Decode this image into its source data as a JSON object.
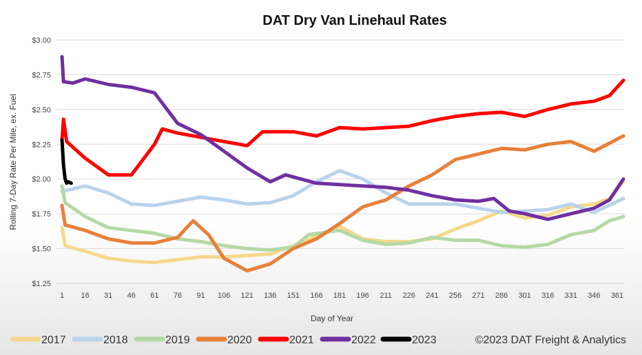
{
  "chart_data": {
    "type": "line",
    "title": "DAT Dry Van Linehaul Rates",
    "xlabel": "Day of Year",
    "ylabel": "Rolling 7-Day Rate Per Mile, ex. Fuel",
    "ylim": [
      1.25,
      3.0
    ],
    "xlim": [
      1,
      365
    ],
    "y_ticks": [
      "$1.25",
      "$1.50",
      "$1.75",
      "$2.00",
      "$2.25",
      "$2.50",
      "$2.75",
      "$3.00"
    ],
    "x_ticks": [
      "1",
      "16",
      "31",
      "46",
      "61",
      "76",
      "91",
      "106",
      "121",
      "136",
      "151",
      "166",
      "181",
      "196",
      "211",
      "226",
      "241",
      "256",
      "271",
      "286",
      "301",
      "316",
      "331",
      "346",
      "361"
    ],
    "grid": "horizontal",
    "legend_position": "bottom",
    "copyright": "©2023 DAT Freight & Analytics",
    "series": [
      {
        "name": "2017",
        "color": "#f5d98b",
        "x": [
          1,
          3,
          16,
          31,
          46,
          61,
          76,
          91,
          106,
          121,
          136,
          151,
          166,
          181,
          196,
          211,
          226,
          241,
          256,
          271,
          286,
          301,
          316,
          331,
          346,
          356,
          365
        ],
        "values": [
          1.65,
          1.52,
          1.48,
          1.43,
          1.41,
          1.4,
          1.42,
          1.44,
          1.44,
          1.45,
          1.46,
          1.52,
          1.59,
          1.66,
          1.57,
          1.55,
          1.55,
          1.57,
          1.64,
          1.7,
          1.77,
          1.72,
          1.74,
          1.8,
          1.82,
          1.86,
          1.98
        ]
      },
      {
        "name": "2018",
        "color": "#b8d3ec",
        "x": [
          1,
          16,
          31,
          46,
          61,
          76,
          91,
          106,
          121,
          136,
          151,
          166,
          181,
          196,
          211,
          226,
          241,
          256,
          271,
          286,
          301,
          316,
          331,
          346,
          365
        ],
        "values": [
          1.91,
          1.95,
          1.9,
          1.82,
          1.81,
          1.84,
          1.87,
          1.85,
          1.82,
          1.83,
          1.88,
          1.98,
          2.06,
          2.0,
          1.9,
          1.82,
          1.82,
          1.82,
          1.79,
          1.76,
          1.77,
          1.78,
          1.82,
          1.76,
          1.86
        ]
      },
      {
        "name": "2019",
        "color": "#b5d9a5",
        "x": [
          1,
          3,
          16,
          31,
          46,
          61,
          76,
          91,
          106,
          121,
          136,
          151,
          161,
          181,
          196,
          211,
          226,
          241,
          256,
          271,
          286,
          301,
          316,
          331,
          346,
          356,
          365
        ],
        "values": [
          1.95,
          1.83,
          1.73,
          1.65,
          1.63,
          1.61,
          1.57,
          1.55,
          1.52,
          1.5,
          1.49,
          1.51,
          1.6,
          1.63,
          1.56,
          1.53,
          1.54,
          1.58,
          1.56,
          1.56,
          1.52,
          1.51,
          1.53,
          1.6,
          1.63,
          1.7,
          1.73
        ]
      },
      {
        "name": "2020",
        "color": "#e8803a",
        "x": [
          1,
          3,
          16,
          31,
          46,
          61,
          76,
          86,
          96,
          106,
          121,
          136,
          151,
          166,
          181,
          196,
          211,
          226,
          241,
          256,
          271,
          286,
          301,
          316,
          331,
          346,
          365
        ],
        "values": [
          1.81,
          1.67,
          1.63,
          1.57,
          1.54,
          1.54,
          1.58,
          1.7,
          1.6,
          1.43,
          1.34,
          1.39,
          1.5,
          1.57,
          1.68,
          1.8,
          1.85,
          1.95,
          2.03,
          2.14,
          2.18,
          2.22,
          2.21,
          2.25,
          2.27,
          2.2,
          2.31
        ]
      },
      {
        "name": "2021",
        "color": "#ff0000",
        "x": [
          1,
          2,
          4,
          16,
          31,
          46,
          61,
          66,
          76,
          91,
          106,
          121,
          131,
          151,
          166,
          181,
          196,
          211,
          226,
          241,
          256,
          271,
          286,
          301,
          316,
          331,
          346,
          356,
          365
        ],
        "values": [
          2.28,
          2.43,
          2.27,
          2.15,
          2.03,
          2.03,
          2.25,
          2.36,
          2.33,
          2.3,
          2.27,
          2.24,
          2.34,
          2.34,
          2.31,
          2.37,
          2.36,
          2.37,
          2.38,
          2.42,
          2.45,
          2.47,
          2.48,
          2.45,
          2.5,
          2.54,
          2.56,
          2.6,
          2.71
        ]
      },
      {
        "name": "2022",
        "color": "#7030a0",
        "x": [
          1,
          2,
          8,
          16,
          31,
          46,
          61,
          76,
          91,
          106,
          121,
          136,
          146,
          166,
          181,
          196,
          211,
          226,
          241,
          256,
          271,
          281,
          291,
          301,
          316,
          331,
          346,
          356,
          365
        ],
        "values": [
          2.88,
          2.7,
          2.69,
          2.72,
          2.68,
          2.66,
          2.62,
          2.4,
          2.32,
          2.2,
          2.08,
          1.98,
          2.03,
          1.97,
          1.96,
          1.95,
          1.94,
          1.92,
          1.88,
          1.85,
          1.84,
          1.86,
          1.77,
          1.75,
          1.71,
          1.75,
          1.79,
          1.85,
          2.0
        ]
      },
      {
        "name": "2023",
        "color": "#000000",
        "x": [
          1,
          2,
          3,
          4,
          5,
          7
        ],
        "values": [
          2.28,
          2.1,
          2.0,
          1.97,
          1.98,
          1.97
        ]
      }
    ]
  }
}
